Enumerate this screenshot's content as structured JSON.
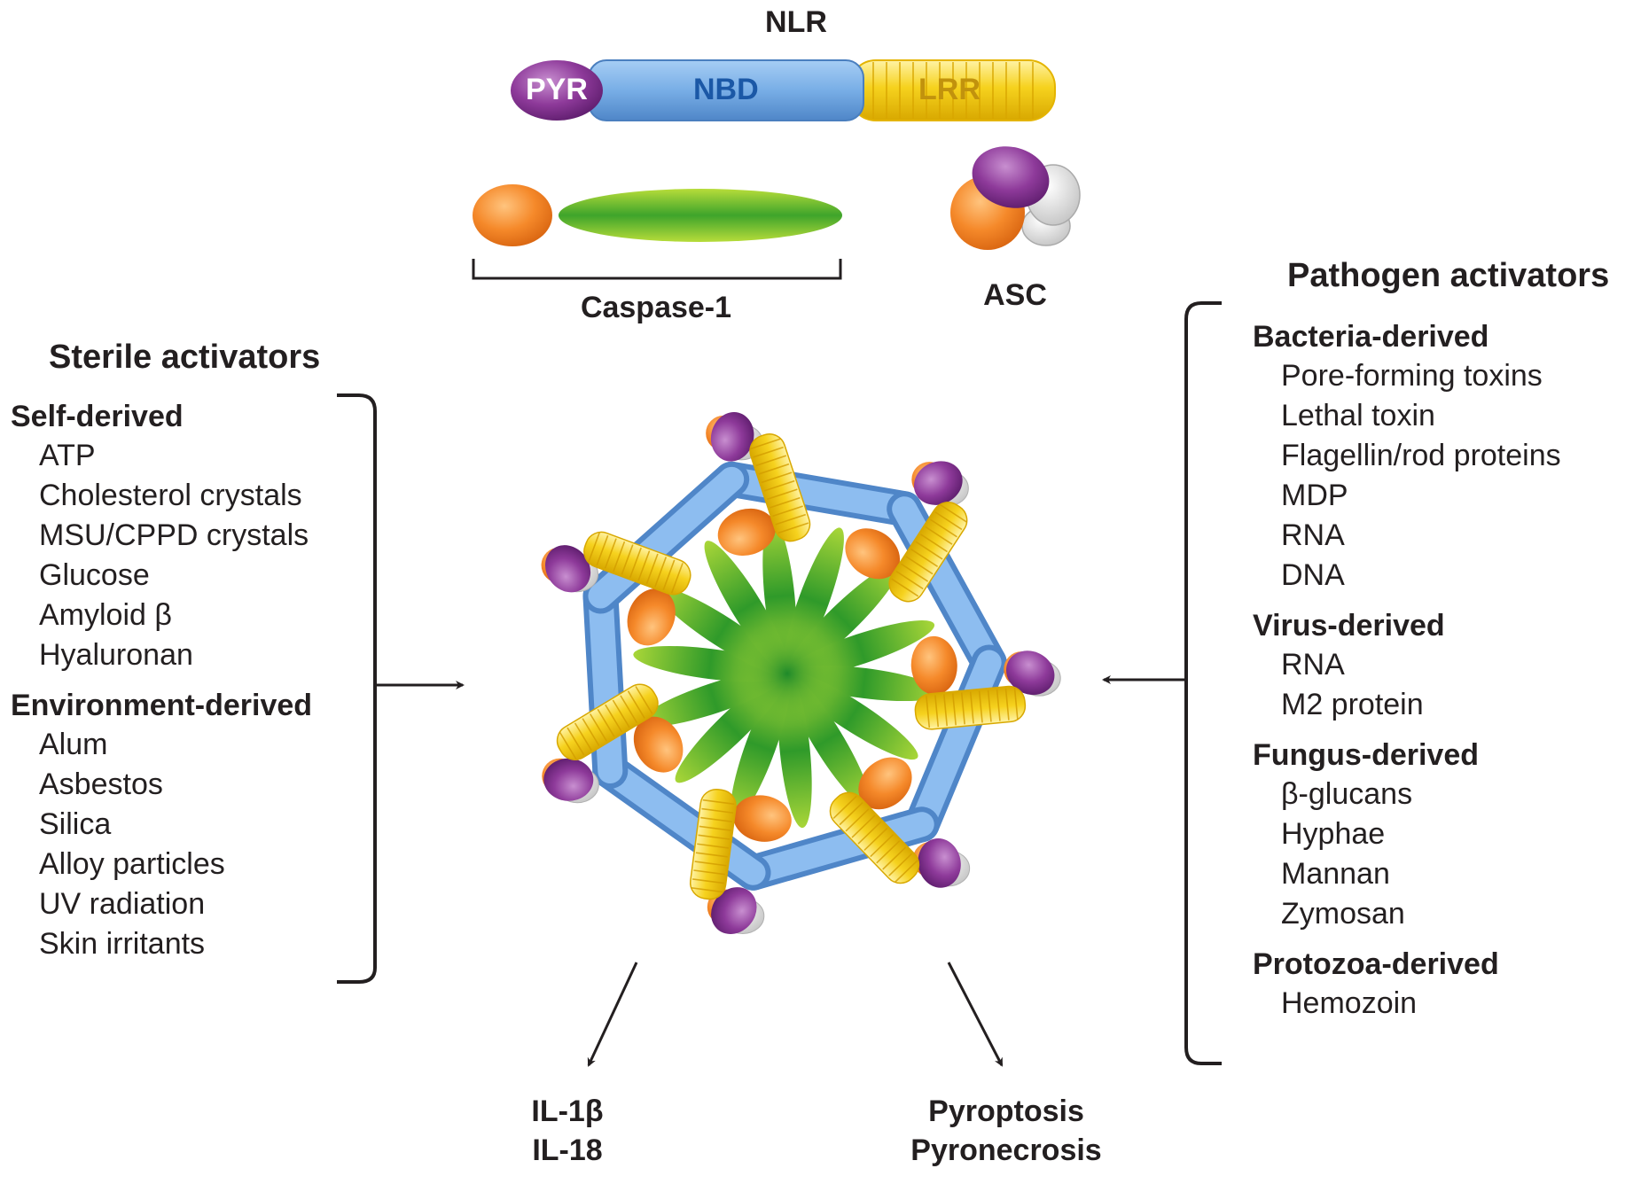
{
  "labels": {
    "nlr": "NLR",
    "pyr": "PYR",
    "nbd": "NBD",
    "lrr": "LRR",
    "caspase": "Caspase-1",
    "asc": "ASC"
  },
  "sterile": {
    "title": "Sterile activators",
    "groups": [
      {
        "name": "Self-derived",
        "items": [
          "ATP",
          "Cholesterol crystals",
          "MSU/CPPD crystals",
          "Glucose",
          "Amyloid β",
          "Hyaluronan"
        ]
      },
      {
        "name": "Environment-derived",
        "items": [
          "Alum",
          "Asbestos",
          "Silica",
          "Alloy particles",
          "UV radiation",
          "Skin irritants"
        ]
      }
    ]
  },
  "pathogen": {
    "title": "Pathogen activators",
    "groups": [
      {
        "name": "Bacteria-derived",
        "items": [
          "Pore-forming toxins",
          "Lethal toxin",
          "Flagellin/rod proteins",
          "MDP",
          "RNA",
          "DNA"
        ]
      },
      {
        "name": "Virus-derived",
        "items": [
          "RNA",
          "M2 protein"
        ]
      },
      {
        "name": "Fungus-derived",
        "items": [
          "β-glucans",
          "Hyphae",
          "Mannan",
          "Zymosan"
        ]
      },
      {
        "name": "Protozoa-derived",
        "items": [
          "Hemozoin"
        ]
      }
    ]
  },
  "outputs": {
    "cytokines": [
      "IL-1β",
      "IL-18"
    ],
    "death": [
      "Pyroptosis",
      "Pyronecrosis"
    ]
  },
  "colors": {
    "pyr": "#8e3a9a",
    "nbd": "#78aee6",
    "lrr": "#f4cf1c",
    "card": "#f5892a",
    "caspase": "#5fb82a",
    "asc_back": "#d8d8d8",
    "text": "#231f20"
  }
}
